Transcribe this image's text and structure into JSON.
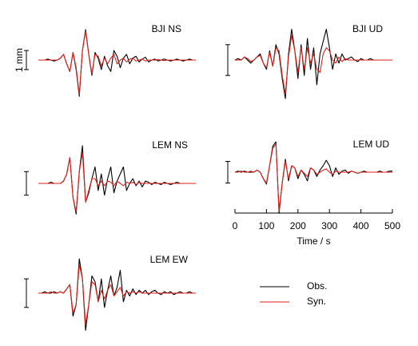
{
  "chart_data": [
    {
      "type": "line",
      "title": "BJI NS",
      "scale_bar": 1,
      "scale_label": "1 mm",
      "x": [
        0,
        10,
        20,
        30,
        40,
        50,
        60,
        70,
        80,
        90,
        100,
        110,
        120,
        130,
        140,
        150,
        160,
        170,
        180,
        190,
        200,
        210,
        220,
        230,
        240,
        250,
        260,
        270,
        280,
        290,
        300,
        310,
        320,
        330,
        340,
        350,
        360,
        370,
        380,
        390,
        400,
        410,
        420,
        430,
        440,
        450,
        460,
        470,
        480,
        490,
        500
      ],
      "xlim": [
        0,
        500
      ],
      "ylim": [
        -2.1,
        2.1
      ],
      "series": [
        {
          "name": "Obs.",
          "color": "#000000",
          "values": [
            0,
            0,
            0,
            0.05,
            0,
            -0.05,
            0,
            0.1,
            0.3,
            -0.2,
            -0.6,
            0.4,
            -0.5,
            -1.9,
            0.5,
            1.6,
            0.3,
            -0.8,
            0.4,
            0.1,
            -0.5,
            0.2,
            -0.3,
            -0.6,
            0.5,
            0.2,
            -0.4,
            0.1,
            0.3,
            -0.2,
            0.1,
            0.2,
            -0.1,
            0.05,
            0.15,
            -0.1,
            0,
            0.05,
            -0.05,
            0,
            0.05,
            0,
            -0.05,
            0,
            0.05,
            0,
            -0.05,
            0,
            0.05,
            0,
            0
          ]
        },
        {
          "name": "Syn.",
          "color": "#e0201b",
          "values": [
            0,
            0,
            0,
            0,
            0,
            0,
            0,
            0.1,
            0.3,
            -0.2,
            -0.6,
            0.4,
            -0.4,
            -1.8,
            0.5,
            1.5,
            0.3,
            -0.7,
            0.3,
            0.2,
            -0.3,
            0.1,
            -0.2,
            0.1,
            0.3,
            -0.2,
            0,
            0.1,
            -0.1,
            0.05,
            0.1,
            -0.05,
            0,
            0.05,
            -0.05,
            0,
            0,
            0,
            0.03,
            0,
            -0.03,
            0,
            0,
            0,
            0,
            0,
            0,
            0,
            0,
            0,
            0
          ]
        }
      ]
    },
    {
      "type": "line",
      "title": "BJI UD",
      "scale_bar": 1,
      "x": [
        0,
        10,
        20,
        30,
        40,
        50,
        60,
        70,
        80,
        90,
        100,
        110,
        120,
        130,
        140,
        150,
        160,
        170,
        180,
        190,
        200,
        210,
        220,
        230,
        240,
        250,
        260,
        270,
        280,
        290,
        300,
        310,
        320,
        330,
        340,
        350,
        360,
        370,
        380,
        390,
        400,
        410,
        420,
        430,
        440,
        450,
        460,
        470,
        480,
        490,
        500
      ],
      "xlim": [
        0,
        500
      ],
      "ylim": [
        -1.3,
        1.3
      ],
      "series": [
        {
          "name": "Obs.",
          "color": "#000000",
          "values": [
            0,
            0.05,
            0,
            0.1,
            0,
            -0.1,
            0,
            0.1,
            0.2,
            -0.1,
            -0.3,
            0.3,
            -0.2,
            0.5,
            0.2,
            -0.6,
            -1.25,
            0.2,
            1.0,
            0.3,
            -0.6,
            0.5,
            -0.5,
            0.7,
            -0.3,
            0.4,
            -0.8,
            0.2,
            0.6,
            1.0,
            0.4,
            -0.3,
            0.2,
            -0.1,
            0.2,
            0,
            0.05,
            0.1,
            0,
            -0.05,
            0.05,
            0,
            0,
            0.05,
            0,
            0,
            0,
            0,
            0,
            0,
            0
          ]
        },
        {
          "name": "Syn.",
          "color": "#e0201b",
          "values": [
            0,
            0,
            0,
            0.1,
            0.05,
            -0.05,
            0,
            0.1,
            0.15,
            -0.1,
            -0.25,
            0.25,
            -0.2,
            0.4,
            0.3,
            -0.5,
            -1.1,
            0.1,
            0.8,
            0.3,
            -0.4,
            0.4,
            -0.3,
            0.4,
            -0.1,
            0.2,
            -0.3,
            -0.4,
            0.2,
            0.4,
            0.3,
            0,
            -0.1,
            0.1,
            -0.05,
            0.05,
            0,
            0,
            0,
            0,
            0,
            0,
            0,
            0,
            0,
            0,
            0,
            0,
            0,
            0,
            0
          ]
        }
      ]
    },
    {
      "type": "line",
      "title": "LEM NS",
      "scale_bar": 1,
      "x": [
        0,
        10,
        20,
        30,
        40,
        50,
        60,
        70,
        80,
        90,
        100,
        110,
        120,
        130,
        140,
        150,
        160,
        170,
        180,
        190,
        200,
        210,
        220,
        230,
        240,
        250,
        260,
        270,
        280,
        290,
        300,
        310,
        320,
        330,
        340,
        350,
        360,
        370,
        380,
        390,
        400,
        410,
        420,
        430,
        440,
        450,
        460,
        470,
        480,
        490,
        500
      ],
      "xlim": [
        0,
        500
      ],
      "ylim": [
        -1.7,
        1.7
      ],
      "series": [
        {
          "name": "Obs.",
          "color": "#000000",
          "values": [
            0,
            0,
            0,
            0,
            0.05,
            0,
            0,
            0,
            0.1,
            0.4,
            1.1,
            -0.6,
            -1.3,
            0.5,
            1.6,
            -0.8,
            -0.4,
            0.2,
            0.7,
            -0.3,
            0.4,
            -0.5,
            0.2,
            0.7,
            -0.4,
            0.1,
            0.4,
            0.7,
            -0.3,
            0,
            0.2,
            -0.1,
            0.1,
            -0.15,
            0.1,
            0.05,
            -0.05,
            0.05,
            0,
            -0.05,
            0.05,
            0,
            -0.05,
            0,
            0.05,
            0,
            0,
            0,
            0,
            0,
            0
          ]
        },
        {
          "name": "Syn.",
          "color": "#e0201b",
          "values": [
            0,
            0,
            0,
            0,
            0,
            0,
            0,
            0,
            0.1,
            0.4,
            1.1,
            -0.6,
            -1.2,
            0.5,
            1.3,
            -0.8,
            -0.3,
            0.2,
            0.2,
            -0.1,
            0.1,
            -0.1,
            0.1,
            0.05,
            -0.1,
            0.1,
            0,
            -0.1,
            0.05,
            0,
            0.05,
            -0.05,
            0.05,
            0,
            0,
            0,
            0,
            0,
            0,
            0,
            0,
            0,
            0,
            0,
            0,
            0,
            0,
            0,
            0,
            0,
            0
          ]
        }
      ]
    },
    {
      "type": "line",
      "title": "LEM UD",
      "scale_bar": 1,
      "xlabel": "Time / s",
      "x": [
        0,
        10,
        20,
        30,
        40,
        50,
        60,
        70,
        80,
        90,
        100,
        110,
        120,
        130,
        140,
        150,
        160,
        170,
        180,
        190,
        200,
        210,
        220,
        230,
        240,
        250,
        260,
        270,
        280,
        290,
        300,
        310,
        320,
        330,
        340,
        350,
        360,
        370,
        380,
        390,
        400,
        410,
        420,
        430,
        440,
        450,
        460,
        470,
        480,
        490,
        500
      ],
      "xlim": [
        0,
        500
      ],
      "xticks": [
        0,
        100,
        200,
        300,
        400,
        500
      ],
      "ylim": [
        -1.85,
        1.85
      ],
      "series": [
        {
          "name": "Obs.",
          "color": "#000000",
          "values": [
            0,
            0.05,
            0,
            0.05,
            0,
            0,
            0,
            0.1,
            0,
            -0.3,
            -0.55,
            0.3,
            1.2,
            1.4,
            -1.9,
            -0.5,
            0.6,
            -0.4,
            0.3,
            0.2,
            -0.3,
            0.1,
            -0.1,
            -0.4,
            0.2,
            0.1,
            -0.2,
            0.1,
            0.3,
            0.55,
            0.3,
            -0.2,
            0.2,
            -0.1,
            0.05,
            0.1,
            -0.05,
            0.05,
            0,
            -0.05,
            0,
            0.05,
            0,
            0,
            0,
            0,
            0.05,
            0,
            0,
            0.05,
            0.05
          ]
        },
        {
          "name": "Syn.",
          "color": "#e0201b",
          "values": [
            0,
            0,
            0.05,
            0,
            0,
            0.05,
            0,
            0.1,
            0,
            -0.3,
            -0.5,
            0.3,
            1.1,
            1.3,
            -1.8,
            -0.5,
            0.5,
            -0.3,
            0.3,
            0.2,
            -0.2,
            0.1,
            -0.05,
            -0.2,
            0.2,
            0.1,
            -0.1,
            0,
            0.1,
            0.15,
            0,
            -0.1,
            0.05,
            0,
            0,
            0,
            0,
            0.05,
            0,
            -0.05,
            0,
            0,
            0,
            0,
            0,
            0,
            0,
            0,
            0,
            0,
            0
          ]
        }
      ]
    },
    {
      "type": "line",
      "title": "LEM EW",
      "scale_bar": 1,
      "x": [
        0,
        10,
        20,
        30,
        40,
        50,
        60,
        70,
        80,
        90,
        100,
        110,
        120,
        130,
        140,
        150,
        160,
        170,
        180,
        190,
        200,
        210,
        220,
        230,
        240,
        250,
        260,
        270,
        280,
        290,
        300,
        310,
        320,
        330,
        340,
        350,
        360,
        370,
        380,
        390,
        400,
        410,
        420,
        430,
        440,
        450,
        460,
        470,
        480,
        490,
        500
      ],
      "xlim": [
        0,
        500
      ],
      "ylim": [
        -1.4,
        1.4
      ],
      "series": [
        {
          "name": "Obs.",
          "color": "#000000",
          "values": [
            0,
            0,
            0.05,
            0,
            0,
            0.05,
            0,
            0.05,
            0,
            0.15,
            0.3,
            -0.8,
            -0.4,
            1.2,
            0.5,
            -1.3,
            -0.4,
            0.6,
            0.4,
            -0.3,
            0.5,
            -0.5,
            0.1,
            0.6,
            -0.1,
            0.2,
            0.8,
            -0.3,
            0.1,
            -0.1,
            0.15,
            -0.05,
            0.1,
            0,
            0.1,
            -0.05,
            0.05,
            0.1,
            0,
            -0.05,
            0.05,
            0,
            0.05,
            -0.05,
            0,
            0.05,
            0,
            0,
            0.05,
            0,
            0
          ]
        },
        {
          "name": "Syn.",
          "color": "#e0201b",
          "values": [
            0,
            0,
            0,
            0,
            0.05,
            0,
            0,
            0.05,
            0,
            0.15,
            0.3,
            -0.7,
            -0.4,
            1.0,
            0.5,
            -1.1,
            -0.4,
            0.4,
            0.3,
            -0.3,
            0.1,
            -0.2,
            0.1,
            0.3,
            -0.1,
            0.05,
            0.2,
            -0.1,
            0.05,
            0,
            0.05,
            0,
            0.05,
            0,
            0,
            0,
            0,
            0,
            0,
            0,
            0,
            0,
            0,
            0,
            0,
            0,
            0,
            0,
            0,
            0,
            0
          ]
        }
      ]
    }
  ]
}
